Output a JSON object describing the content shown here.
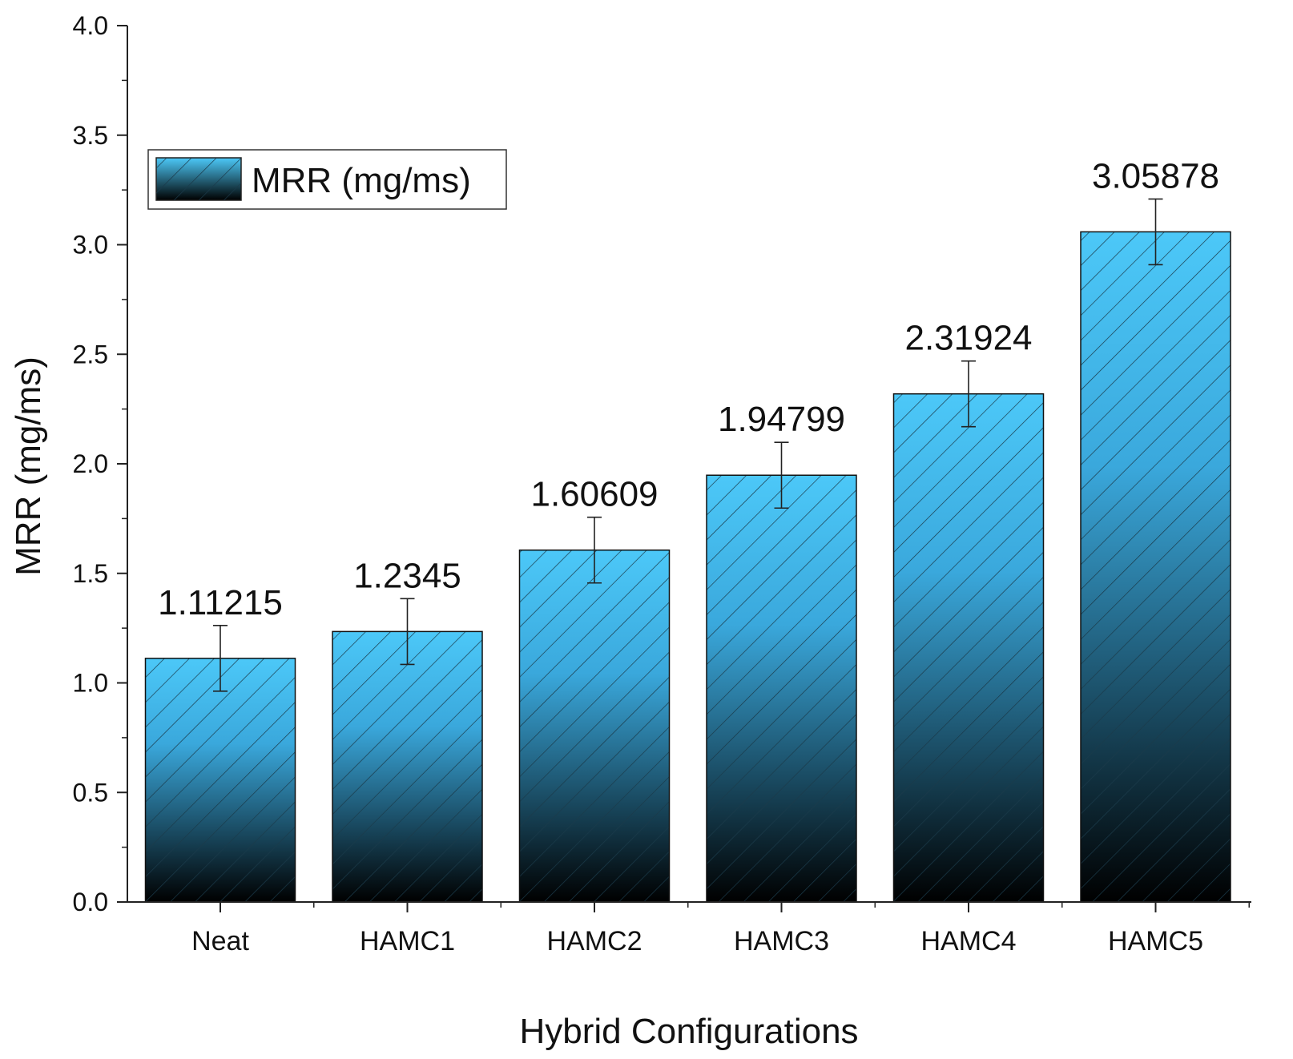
{
  "chart_data": {
    "type": "bar",
    "xlabel": "Hybrid Configurations",
    "ylabel": "MRR (mg/ms)",
    "categories": [
      "Neat",
      "HAMC1",
      "HAMC2",
      "HAMC3",
      "HAMC4",
      "HAMC5"
    ],
    "series": [
      {
        "name": "MRR (mg/ms)",
        "values": [
          1.11215,
          1.2345,
          1.60609,
          1.94799,
          2.31924,
          3.05878
        ],
        "labels": [
          "1.11215",
          "1.2345",
          "1.60609",
          "1.94799",
          "2.31924",
          "3.05878"
        ],
        "error": [
          0.15,
          0.15,
          0.15,
          0.15,
          0.15,
          0.15
        ]
      }
    ],
    "ylim": [
      0,
      4.0
    ],
    "yticks": [
      "0.0",
      "0.5",
      "1.0",
      "1.5",
      "2.0",
      "2.5",
      "3.0",
      "3.5",
      "4.0"
    ],
    "legend": {
      "position": "top-left",
      "label": "MRR (mg/ms)"
    },
    "grid": false,
    "bar_style": "diagonal hatch, gradient from light blue (top) to black (bottom)",
    "colors": {
      "bar_top": "#4cc8f8",
      "bar_bottom": "#000000",
      "hatch": "#1a3a4a",
      "axis": "#222222"
    }
  }
}
